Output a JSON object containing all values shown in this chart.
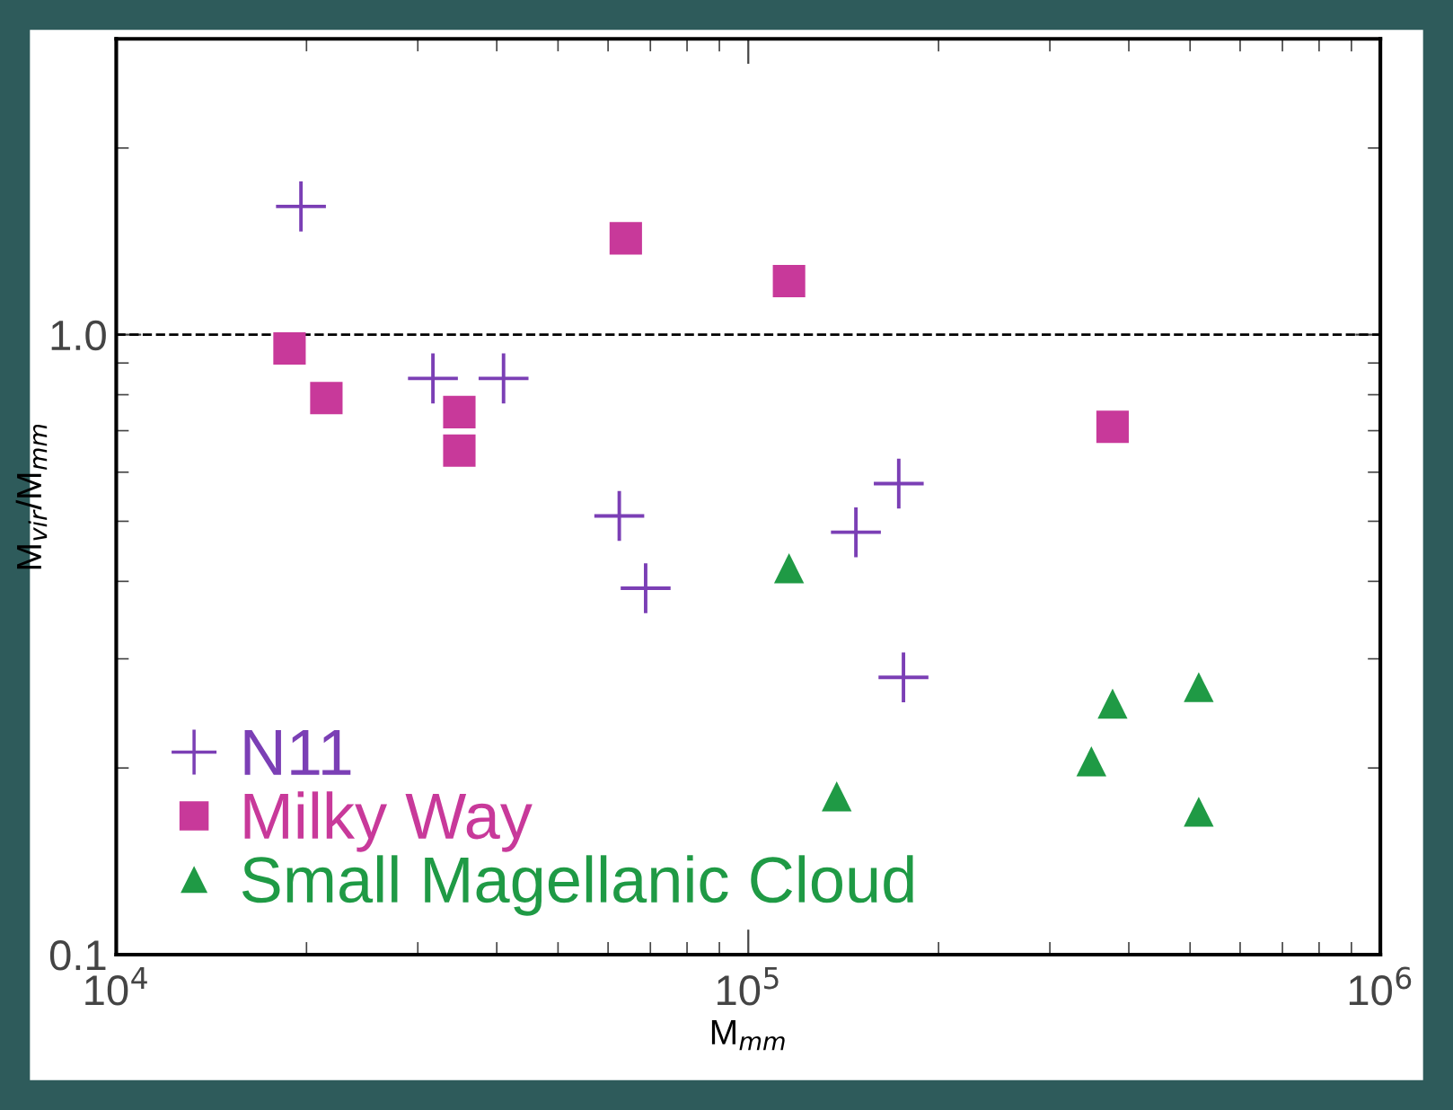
{
  "chart_data": {
    "type": "scatter",
    "xlabel": "M$_{mm}$",
    "ylabel": "M$_{vir}$/M$_{mm}$",
    "log": "xy",
    "xlim": [
      10000,
      1000000
    ],
    "xticks": [
      {
        "value": 10000,
        "label": "10$^{4}$"
      },
      {
        "value": 100000,
        "label": "10$^{5}$"
      },
      {
        "value": 1000000,
        "label": "10$^{6}$"
      }
    ],
    "ylim": [
      0.1,
      3
    ],
    "yticks": [
      {
        "value": 0.1,
        "label": "0.1"
      },
      {
        "value": 1,
        "label": "1.0"
      }
    ],
    "ref_lines": [
      {
        "axis": "y",
        "value": 1,
        "line_style": "dashed",
        "color": "#000000"
      }
    ],
    "legend": "bottom left",
    "grid": false,
    "series": [
      {
        "name": "N11",
        "color": "#7b3fb5",
        "marker": "cross",
        "x": [
          19600,
          31700,
          41000,
          62500,
          68800,
          148000,
          173000,
          176000
        ],
        "values": [
          1.61,
          0.85,
          0.85,
          0.51,
          0.39,
          0.48,
          0.575,
          0.28
        ]
      },
      {
        "name": "Milky Way",
        "color": "#c8399a",
        "marker": "square",
        "x": [
          18800,
          21500,
          34900,
          34900,
          64000,
          116000,
          377000
        ],
        "values": [
          0.95,
          0.79,
          0.75,
          0.65,
          1.43,
          1.22,
          0.71
        ]
      },
      {
        "name": "Small Magellanic Cloud",
        "color": "#1f9a45",
        "marker": "triangle",
        "x": [
          116000,
          138000,
          349000,
          377000,
          516000,
          516000
        ],
        "values": [
          0.42,
          0.18,
          0.205,
          0.254,
          0.27,
          0.17
        ]
      }
    ]
  }
}
